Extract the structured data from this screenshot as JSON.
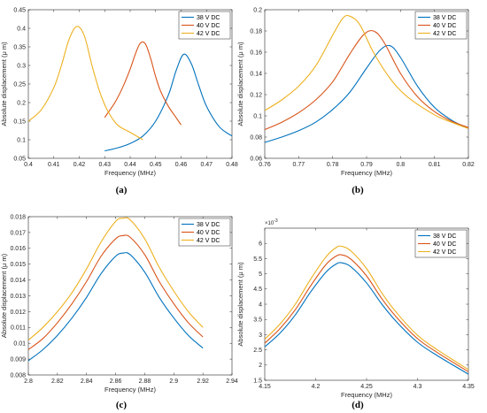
{
  "colors": {
    "s38": "#0072BD",
    "s40": "#D95319",
    "s42": "#EDB120"
  },
  "chart_data": [
    {
      "type": "line",
      "caption": "(a)",
      "xlabel": "Frequency (MHz)",
      "ylabel": "Absolute displacement (μ m)",
      "xlim": [
        0.4,
        0.48
      ],
      "ylim": [
        0.05,
        0.45
      ],
      "xticks": [
        "0.4",
        "0.41",
        "0.42",
        "0.43",
        "0.44",
        "0.45",
        "0.46",
        "0.47",
        "0.48"
      ],
      "yticks": [
        "0.05",
        "0.1",
        "0.15",
        "0.2",
        "0.25",
        "0.3",
        "0.35",
        "0.4",
        "0.45"
      ],
      "legend_position": "top-right",
      "series": [
        {
          "name": "38 V DC",
          "x": [
            0.43,
            0.435,
            0.44,
            0.445,
            0.45,
            0.455,
            0.458,
            0.461,
            0.464,
            0.467,
            0.47,
            0.475,
            0.48
          ],
          "y": [
            0.07,
            0.078,
            0.09,
            0.11,
            0.15,
            0.22,
            0.285,
            0.33,
            0.305,
            0.245,
            0.19,
            0.135,
            0.11
          ]
        },
        {
          "name": "40 V DC",
          "x": [
            0.43,
            0.434,
            0.437,
            0.44,
            0.442,
            0.444,
            0.446,
            0.448,
            0.45,
            0.452,
            0.455,
            0.458,
            0.46
          ],
          "y": [
            0.16,
            0.2,
            0.24,
            0.29,
            0.33,
            0.36,
            0.358,
            0.32,
            0.27,
            0.23,
            0.19,
            0.16,
            0.14
          ]
        },
        {
          "name": "42 V DC",
          "x": [
            0.4,
            0.405,
            0.41,
            0.413,
            0.416,
            0.419,
            0.422,
            0.425,
            0.428,
            0.431,
            0.435,
            0.44,
            0.445
          ],
          "y": [
            0.15,
            0.18,
            0.24,
            0.3,
            0.37,
            0.405,
            0.38,
            0.3,
            0.23,
            0.18,
            0.14,
            0.12,
            0.1
          ]
        }
      ]
    },
    {
      "type": "line",
      "caption": "(b)",
      "xlabel": "Frequency (MHz)",
      "ylabel": "Absolute displacement (μ m)",
      "xlim": [
        0.76,
        0.82
      ],
      "ylim": [
        0.06,
        0.2
      ],
      "xticks": [
        "0.76",
        "0.77",
        "0.78",
        "0.79",
        "0.8",
        "0.81",
        "0.82"
      ],
      "yticks": [
        "0.06",
        "0.08",
        "0.1",
        "0.12",
        "0.14",
        "0.16",
        "0.18",
        "0.2"
      ],
      "legend_position": "top-right",
      "series": [
        {
          "name": "38 V DC",
          "x": [
            0.76,
            0.765,
            0.77,
            0.775,
            0.78,
            0.785,
            0.79,
            0.794,
            0.797,
            0.8,
            0.805,
            0.81,
            0.815,
            0.82
          ],
          "y": [
            0.075,
            0.08,
            0.086,
            0.094,
            0.106,
            0.122,
            0.145,
            0.162,
            0.166,
            0.155,
            0.128,
            0.108,
            0.096,
            0.088
          ]
        },
        {
          "name": "40 V DC",
          "x": [
            0.76,
            0.765,
            0.77,
            0.775,
            0.78,
            0.785,
            0.789,
            0.792,
            0.795,
            0.8,
            0.805,
            0.81,
            0.815,
            0.82
          ],
          "y": [
            0.087,
            0.094,
            0.103,
            0.115,
            0.132,
            0.158,
            0.176,
            0.18,
            0.17,
            0.14,
            0.118,
            0.104,
            0.095,
            0.089
          ]
        },
        {
          "name": "42 V DC",
          "x": [
            0.76,
            0.765,
            0.77,
            0.775,
            0.78,
            0.783,
            0.785,
            0.788,
            0.792,
            0.797,
            0.802,
            0.81,
            0.815,
            0.82
          ],
          "y": [
            0.105,
            0.115,
            0.128,
            0.147,
            0.176,
            0.192,
            0.194,
            0.186,
            0.16,
            0.135,
            0.118,
            0.101,
            0.094,
            0.088
          ]
        }
      ]
    },
    {
      "type": "line",
      "caption": "(c)",
      "xlabel": "Frequency (MHz)",
      "ylabel": "Absolute displacement (μ m)",
      "xlim": [
        2.8,
        2.94
      ],
      "ylim": [
        0.008,
        0.018
      ],
      "xticks": [
        "2.8",
        "2.82",
        "2.84",
        "2.86",
        "2.88",
        "2.9",
        "2.92",
        "2.94"
      ],
      "yticks": [
        "0.008",
        "0.009",
        "0.01",
        "0.011",
        "0.012",
        "0.013",
        "0.014",
        "0.015",
        "0.016",
        "0.017",
        "0.018"
      ],
      "legend_position": "top-right",
      "series": [
        {
          "name": "38 V DC",
          "x": [
            2.8,
            2.81,
            2.82,
            2.83,
            2.84,
            2.85,
            2.86,
            2.865,
            2.87,
            2.88,
            2.89,
            2.9,
            2.91,
            2.92
          ],
          "y": [
            0.0089,
            0.0096,
            0.0105,
            0.0116,
            0.0129,
            0.0144,
            0.0155,
            0.0157,
            0.0156,
            0.0145,
            0.0129,
            0.0116,
            0.0105,
            0.0097
          ]
        },
        {
          "name": "40 V DC",
          "x": [
            2.8,
            2.81,
            2.82,
            2.83,
            2.84,
            2.85,
            2.86,
            2.865,
            2.87,
            2.88,
            2.89,
            2.9,
            2.91,
            2.92
          ],
          "y": [
            0.0096,
            0.0103,
            0.0113,
            0.0125,
            0.0139,
            0.0155,
            0.0166,
            0.0168,
            0.0167,
            0.0156,
            0.0139,
            0.0125,
            0.0113,
            0.0104
          ]
        },
        {
          "name": "42 V DC",
          "x": [
            2.8,
            2.81,
            2.82,
            2.83,
            2.84,
            2.85,
            2.86,
            2.865,
            2.87,
            2.88,
            2.89,
            2.9,
            2.91,
            2.92
          ],
          "y": [
            0.0102,
            0.011,
            0.012,
            0.0132,
            0.0147,
            0.0164,
            0.0177,
            0.0179,
            0.0178,
            0.0166,
            0.0148,
            0.0133,
            0.012,
            0.011
          ]
        }
      ]
    },
    {
      "type": "line",
      "caption": "(d)",
      "xlabel": "Frequency (MHz)",
      "ylabel": "Absolute displacement (μ m)",
      "y_exponent": "×10",
      "y_exponent_power": "-3",
      "xlim": [
        4.15,
        4.35
      ],
      "ylim": [
        1.5,
        6.5
      ],
      "xticks": [
        "4.15",
        "4.2",
        "4.25",
        "4.3",
        "4.35"
      ],
      "yticks": [
        "1.5",
        "2",
        "2.5",
        "3",
        "3.5",
        "4",
        "4.5",
        "5",
        "5.5",
        "6"
      ],
      "legend_position": "top-right",
      "series": [
        {
          "name": "38 V DC",
          "x": [
            4.15,
            4.165,
            4.18,
            4.195,
            4.21,
            4.22,
            4.226,
            4.235,
            4.25,
            4.265,
            4.28,
            4.3,
            4.32,
            4.35
          ],
          "y": [
            2.6,
            3.05,
            3.65,
            4.4,
            5.05,
            5.32,
            5.36,
            5.22,
            4.7,
            4.0,
            3.4,
            2.75,
            2.3,
            1.7
          ]
        },
        {
          "name": "40 V DC",
          "x": [
            4.15,
            4.165,
            4.18,
            4.195,
            4.21,
            4.22,
            4.226,
            4.235,
            4.25,
            4.265,
            4.28,
            4.3,
            4.32,
            4.35
          ],
          "y": [
            2.72,
            3.2,
            3.82,
            4.6,
            5.3,
            5.58,
            5.62,
            5.47,
            4.93,
            4.18,
            3.55,
            2.87,
            2.4,
            1.78
          ]
        },
        {
          "name": "42 V DC",
          "x": [
            4.15,
            4.165,
            4.18,
            4.195,
            4.21,
            4.22,
            4.226,
            4.235,
            4.25,
            4.265,
            4.28,
            4.3,
            4.32,
            4.35
          ],
          "y": [
            2.85,
            3.35,
            4.0,
            4.82,
            5.55,
            5.86,
            5.9,
            5.74,
            5.17,
            4.37,
            3.7,
            2.98,
            2.49,
            1.85
          ]
        }
      ]
    }
  ]
}
